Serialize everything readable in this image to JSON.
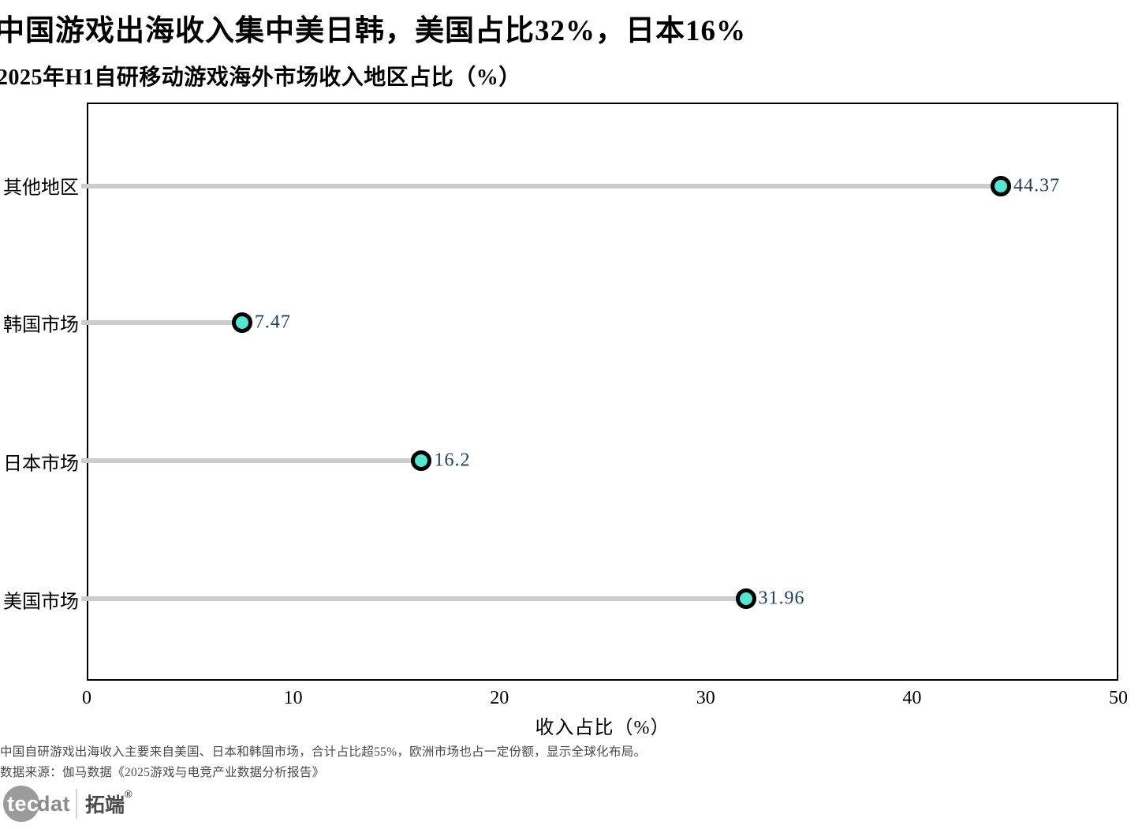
{
  "title": "中国游戏出海收入集中美日韩，美国占比32%，日本16%",
  "subtitle": "2025年H1自研移动游戏海外市场收入地区占比（%）",
  "chart_data": {
    "type": "scatter",
    "variant": "horizontal-lollipop",
    "title": "2025年H1自研移动游戏海外市场收入地区占比（%）",
    "categories": [
      "其他地区",
      "韩国市场",
      "日本市场",
      "美国市场"
    ],
    "values": [
      44.37,
      7.47,
      16.2,
      31.96
    ],
    "value_labels": [
      "44.37",
      "7.47",
      "16.2",
      "31.96"
    ],
    "xlabel": "收入占比（%）",
    "ylabel": "",
    "xlim": [
      0,
      50
    ],
    "xticks": [
      0,
      10,
      20,
      30,
      40,
      50
    ],
    "grid": false,
    "legend": false,
    "dot_color": "#58e4d3",
    "dot_ring_color": "#000000",
    "stem_color": "#cccccc",
    "value_text_color": "#22405a"
  },
  "footnotes": [
    "中国自研游戏出海收入主要来自美国、日本和韩国市场，合计占比超55%，欧洲市场也占一定份额，显示全球化布局。",
    "数据来源：伽马数据《2025游戏与电竞产业数据分析报告》"
  ],
  "logo": {
    "circle_text": "tec",
    "suffix_text": "dat",
    "brand_text": "拓端",
    "registered_mark": "®"
  }
}
